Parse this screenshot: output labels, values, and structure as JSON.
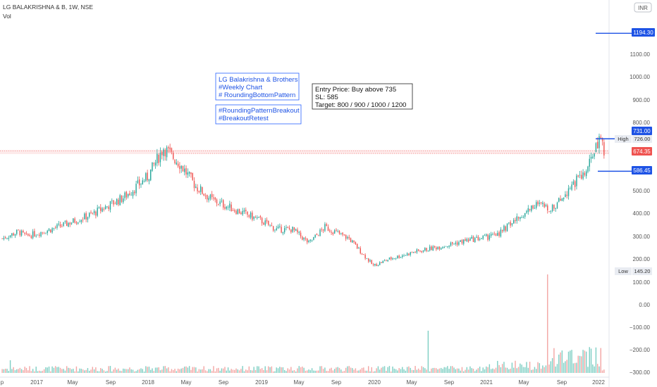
{
  "header": {
    "title": "LG BALAKRISHNA & B, 1W, NSE",
    "indicator": "Vol",
    "currency": "INR"
  },
  "colors": {
    "up": "#26a69a",
    "down": "#ef5350",
    "vol_up": "#7fcfc4",
    "vol_down": "#f3a6a4",
    "accent": "#1e53e5",
    "high_box": "#e9ecf2",
    "current_price": "#ef5350"
  },
  "annotations": {
    "box1": [
      "LG Balakrishna & Brothers",
      "#Weekly Chart",
      "# RoundingBottomPattern"
    ],
    "box2": [
      "#RoundingPatternBreakout",
      "#BreakoutRetest"
    ],
    "box3": [
      "Entry Price: Buy above 735",
      "SL: 585",
      "Target: 800 / 900 / 1000 / 1200"
    ]
  },
  "price_labels": {
    "target": "1194.30",
    "entry": "731.00",
    "high_label": "High",
    "high_value": "726.00",
    "current": "674.35",
    "stop": "586.45",
    "low_label": "Low",
    "low_value": "145.20"
  },
  "chart_data": {
    "type": "candlestick",
    "y_axis_ticks": [
      "1100.00",
      "1000.00",
      "900.00",
      "800.00",
      "500.00",
      "400.00",
      "300.00",
      "200.00"
    ],
    "volume_axis_ticks": [
      "100.00",
      "0.00",
      "−100.00",
      "−200.00",
      "−300.00"
    ],
    "x_axis_ticks": [
      "p",
      "2017",
      "May",
      "Sep",
      "2018",
      "May",
      "Sep",
      "2019",
      "May",
      "Sep",
      "2020",
      "May",
      "Sep",
      "2021",
      "May",
      "Sep",
      "2022"
    ],
    "levels": {
      "target": 1194.3,
      "entry": 731,
      "high": 726,
      "current": 674.35,
      "stop": 586.45,
      "low": 145.2
    },
    "ylim": [
      100,
      1320
    ],
    "anchors": [
      [
        0,
        290
      ],
      [
        10,
        320
      ],
      [
        15,
        300
      ],
      [
        30,
        330
      ],
      [
        40,
        355
      ],
      [
        55,
        395
      ],
      [
        75,
        470
      ],
      [
        90,
        560
      ],
      [
        100,
        690
      ],
      [
        110,
        620
      ],
      [
        120,
        520
      ],
      [
        130,
        460
      ],
      [
        150,
        400
      ],
      [
        160,
        370
      ],
      [
        170,
        330
      ],
      [
        180,
        330
      ],
      [
        190,
        270
      ],
      [
        200,
        340
      ],
      [
        215,
        290
      ],
      [
        225,
        210
      ],
      [
        230,
        170
      ],
      [
        240,
        200
      ],
      [
        255,
        230
      ],
      [
        275,
        260
      ],
      [
        290,
        285
      ],
      [
        305,
        300
      ],
      [
        320,
        380
      ],
      [
        330,
        440
      ],
      [
        342,
        420
      ],
      [
        352,
        520
      ],
      [
        362,
        580
      ],
      [
        370,
        720
      ],
      [
        373,
        680
      ]
    ]
  }
}
